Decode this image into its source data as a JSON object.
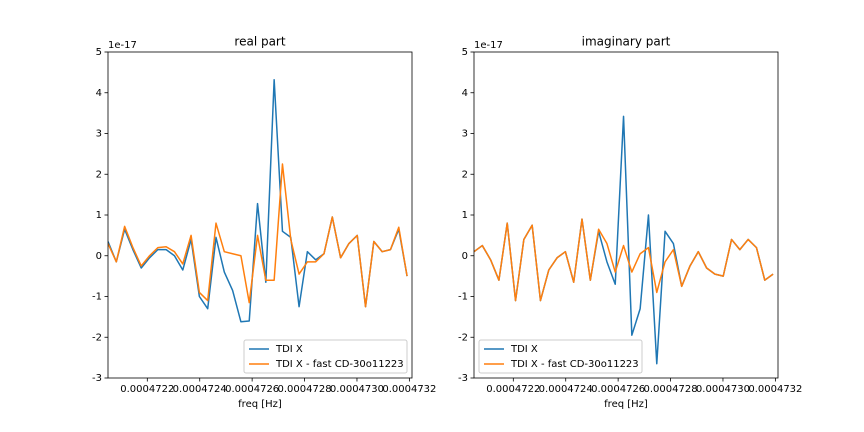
{
  "chart_data": [
    {
      "type": "line",
      "title": "real part",
      "xlabel": "freq [Hz]",
      "y_offset_label": "1e-17",
      "legend": "lower right",
      "x": [
        0.00047205,
        0.0004720817,
        0.0004721134,
        0.0004721451,
        0.0004721768,
        0.0004722085,
        0.0004722402,
        0.0004722719,
        0.0004723036,
        0.0004723353,
        0.000472367,
        0.0004723987,
        0.0004724304,
        0.0004724621,
        0.0004724938,
        0.0004725255,
        0.0004725572,
        0.0004725889,
        0.0004726206,
        0.0004726523,
        0.000472684,
        0.0004727157,
        0.0004727474,
        0.0004727791,
        0.0004728108,
        0.0004728425,
        0.0004728742,
        0.0004729059,
        0.0004729376,
        0.0004729693,
        0.000473001,
        0.0004730327,
        0.0004730644,
        0.0004730961,
        0.0004731278,
        0.0004731595,
        0.0004731912
      ],
      "series": [
        {
          "name": "TDI X",
          "color": "#1f77b4",
          "values": [
            0.35,
            -0.15,
            0.65,
            0.15,
            -0.3,
            -0.05,
            0.15,
            0.15,
            0.0,
            -0.35,
            0.4,
            -1.0,
            -1.3,
            0.45,
            -0.4,
            -0.85,
            -1.62,
            -1.6,
            1.28,
            -0.65,
            4.32,
            0.6,
            0.45,
            -1.25,
            0.1,
            -0.1,
            0.05,
            0.95,
            -0.05,
            0.3,
            0.5,
            -1.25,
            0.35,
            0.1,
            0.15,
            0.65,
            -0.5
          ]
        },
        {
          "name": "TDI X - fast CD-30o11223",
          "color": "#ff7f0e",
          "values": [
            0.3,
            -0.15,
            0.72,
            0.2,
            -0.25,
            0.0,
            0.2,
            0.22,
            0.1,
            -0.2,
            0.5,
            -0.9,
            -1.1,
            0.8,
            0.1,
            0.05,
            0.0,
            -1.15,
            0.5,
            -0.6,
            -0.6,
            2.25,
            0.4,
            -0.45,
            -0.15,
            -0.15,
            0.05,
            0.95,
            -0.05,
            0.3,
            0.5,
            -1.25,
            0.35,
            0.1,
            0.15,
            0.7,
            -0.5
          ]
        }
      ],
      "xlim": [
        0.00047205,
        0.00047321
      ],
      "xticks": [
        0.0004722,
        0.0004724,
        0.0004726,
        0.0004728,
        {
          "value": 0.000473,
          "label": "0.0004730"
        },
        0.0004732
      ],
      "ylim": [
        -3,
        5
      ],
      "yticks": [
        -3,
        -2,
        -1,
        0,
        1,
        2,
        3,
        4,
        5
      ]
    },
    {
      "type": "line",
      "title": "imaginary part",
      "xlabel": "freq [Hz]",
      "y_offset_label": "1e-17",
      "legend": "lower left",
      "x": [
        0.00047205,
        0.0004720817,
        0.0004721134,
        0.0004721451,
        0.0004721768,
        0.0004722085,
        0.0004722402,
        0.0004722719,
        0.0004723036,
        0.0004723353,
        0.000472367,
        0.0004723987,
        0.0004724304,
        0.0004724621,
        0.0004724938,
        0.0004725255,
        0.0004725572,
        0.0004725889,
        0.0004726206,
        0.0004726523,
        0.000472684,
        0.0004727157,
        0.0004727474,
        0.0004727791,
        0.0004728108,
        0.0004728425,
        0.0004728742,
        0.0004729059,
        0.0004729376,
        0.0004729693,
        0.000473001,
        0.0004730327,
        0.0004730644,
        0.0004730961,
        0.0004731278,
        0.0004731595,
        0.0004731912
      ],
      "series": [
        {
          "name": "TDI X",
          "color": "#1f77b4",
          "values": [
            0.1,
            0.25,
            -0.1,
            -0.6,
            0.8,
            -1.1,
            0.4,
            0.75,
            -1.1,
            -0.35,
            -0.05,
            0.1,
            -0.65,
            0.9,
            -0.6,
            0.6,
            -0.15,
            -0.7,
            3.42,
            -1.95,
            -1.3,
            1.0,
            -2.65,
            0.6,
            0.3,
            -0.75,
            -0.25,
            0.1,
            -0.3,
            -0.45,
            -0.5,
            0.4,
            0.15,
            0.4,
            0.2,
            -0.6,
            -0.45
          ]
        },
        {
          "name": "TDI X - fast CD-30o11223",
          "color": "#ff7f0e",
          "values": [
            0.1,
            0.25,
            -0.1,
            -0.6,
            0.8,
            -1.1,
            0.4,
            0.75,
            -1.1,
            -0.35,
            -0.05,
            0.1,
            -0.65,
            0.9,
            -0.6,
            0.65,
            0.3,
            -0.4,
            0.25,
            -0.4,
            0.05,
            0.2,
            -0.9,
            -0.15,
            0.15,
            -0.75,
            -0.25,
            0.1,
            -0.3,
            -0.45,
            -0.5,
            0.4,
            0.15,
            0.4,
            0.2,
            -0.6,
            -0.45
          ]
        }
      ],
      "xlim": [
        0.00047205,
        0.00047321
      ],
      "xticks": [
        0.0004722,
        0.0004724,
        0.0004726,
        0.0004728,
        {
          "value": 0.000473,
          "label": "0.0004730"
        },
        0.0004732
      ],
      "ylim": [
        -3,
        5
      ],
      "yticks": [
        -3,
        -2,
        -1,
        0,
        1,
        2,
        3,
        4,
        5
      ]
    }
  ]
}
